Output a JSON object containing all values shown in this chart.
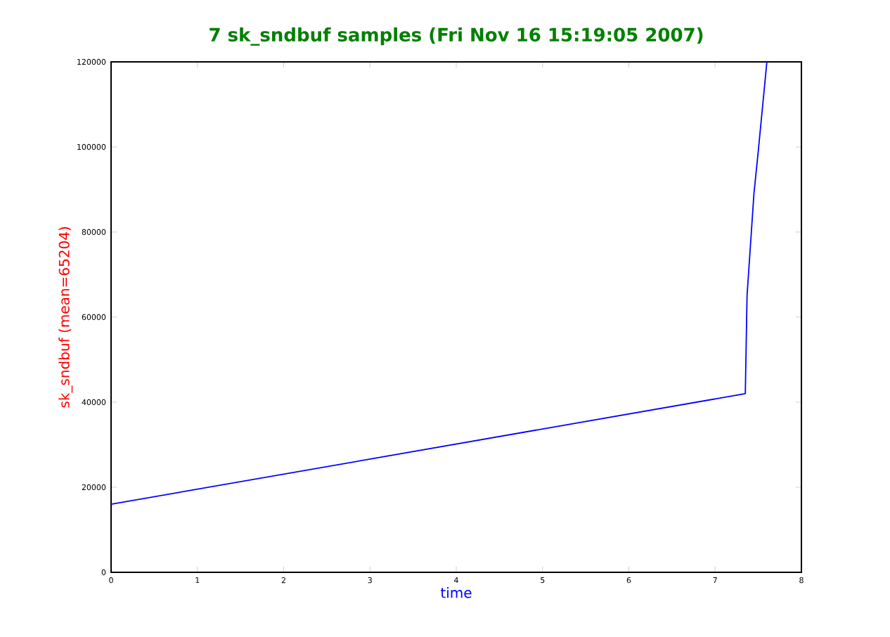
{
  "chart_data": {
    "type": "line",
    "title": "7 sk_sndbuf samples (Fri Nov 16 15:19:05 2007)",
    "xlabel": "time",
    "ylabel": "sk_sndbuf (mean=65204)",
    "series": [
      {
        "color": "#0000ff",
        "x": [
          0,
          7.35,
          7.37,
          7.45,
          7.5,
          7.6
        ],
        "values": [
          16000,
          42000,
          65000,
          89000,
          99000,
          120000
        ]
      }
    ],
    "xlim": [
      0,
      8
    ],
    "ylim": [
      0,
      120000
    ],
    "xticks": [
      0,
      1,
      2,
      3,
      4,
      5,
      6,
      7,
      8
    ],
    "yticks": [
      0,
      20000,
      40000,
      60000,
      80000,
      100000,
      120000
    ],
    "marker": "none",
    "line_style": "solid"
  }
}
